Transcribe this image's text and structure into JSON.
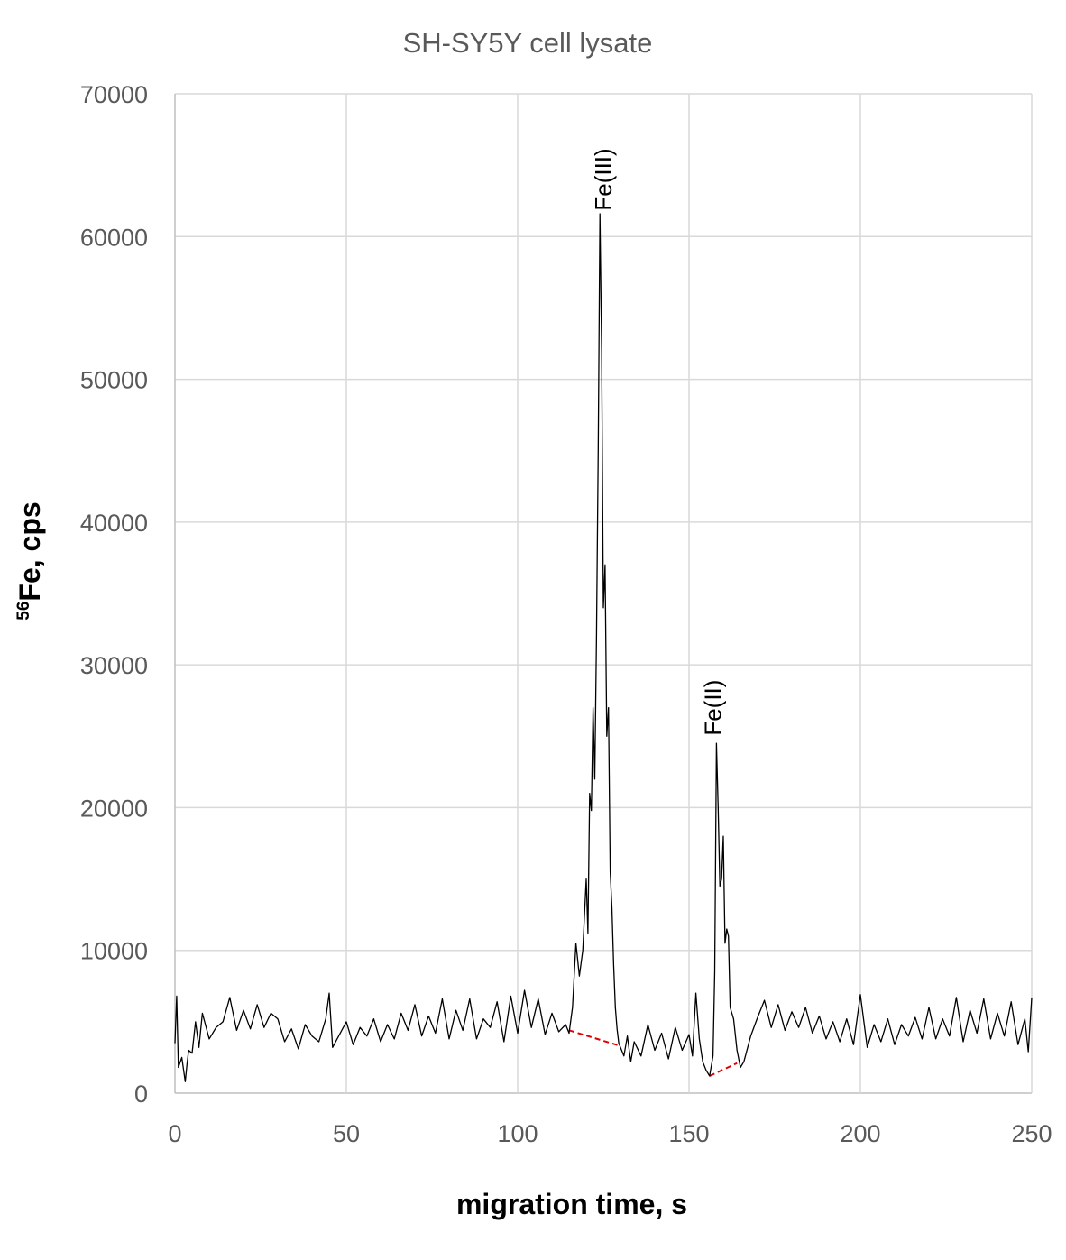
{
  "chart_data": {
    "type": "line",
    "title": "SH-SY5Y cell lysate",
    "xlabel": "migration time, s",
    "ylabel": {
      "sup": "56",
      "main": "Fe, cps"
    },
    "xlim": [
      0,
      250
    ],
    "ylim": [
      0,
      70000
    ],
    "x_ticks": [
      0,
      50,
      100,
      150,
      200,
      250
    ],
    "y_ticks": [
      0,
      10000,
      20000,
      30000,
      40000,
      50000,
      60000,
      70000
    ],
    "grid": true,
    "legend": "none",
    "colors": {
      "line": "#000000",
      "baseline": "#e00000",
      "grid": "#d9d9d9",
      "tick_text": "#595959"
    },
    "annotations": [
      {
        "text": "Fe(III)",
        "x": 125,
        "y": 64000
      },
      {
        "text": "Fe(II)",
        "x": 157,
        "y": 27000
      }
    ],
    "baselines": [
      {
        "x": [
          115,
          130
        ],
        "y": [
          4400,
          3300
        ]
      },
      {
        "x": [
          156,
          164
        ],
        "y": [
          1200,
          2100
        ]
      }
    ],
    "series": [
      {
        "x": [
          0,
          0.5,
          1,
          2,
          3,
          3.5,
          4,
          5,
          6,
          7,
          8,
          10,
          12,
          14,
          16,
          18,
          20,
          22,
          24,
          26,
          28,
          30,
          32,
          34,
          36,
          38,
          40,
          42,
          44,
          45,
          46,
          48,
          50,
          52,
          54,
          56,
          58,
          60,
          62,
          64,
          66,
          68,
          70,
          72,
          74,
          76,
          78,
          80,
          82,
          84,
          86,
          88,
          90,
          92,
          94,
          96,
          98,
          100,
          102,
          104,
          106,
          108,
          110,
          112,
          114,
          115,
          116,
          117,
          118,
          119,
          120,
          120.5,
          121,
          121.5,
          122,
          122.5,
          123,
          123.5,
          124,
          124.5,
          125,
          125.5,
          126,
          126.5,
          127,
          127.5,
          128,
          128.5,
          129,
          129.5,
          130,
          131,
          132,
          133,
          134,
          136,
          138,
          140,
          142,
          144,
          146,
          148,
          150,
          151,
          152,
          153,
          154,
          155,
          156,
          157,
          157.5,
          158,
          158.5,
          159,
          159.5,
          160,
          160.5,
          161,
          161.5,
          162,
          163,
          164,
          165,
          166,
          168,
          170,
          172,
          174,
          176,
          178,
          180,
          182,
          184,
          186,
          188,
          190,
          192,
          194,
          196,
          198,
          200,
          202,
          204,
          206,
          208,
          210,
          212,
          214,
          216,
          218,
          220,
          222,
          224,
          226,
          228,
          230,
          232,
          234,
          236,
          238,
          240,
          242,
          244,
          246,
          248,
          249,
          250
        ],
        "y": [
          3500,
          6800,
          1800,
          2500,
          800,
          2000,
          3000,
          2800,
          5000,
          3200,
          5600,
          3800,
          4600,
          5000,
          6700,
          4400,
          5800,
          4500,
          6200,
          4600,
          5600,
          5200,
          3600,
          4500,
          3100,
          4800,
          4000,
          3600,
          5200,
          7000,
          3200,
          4100,
          5000,
          3400,
          4600,
          4000,
          5200,
          3600,
          4800,
          3800,
          5600,
          4400,
          6200,
          4000,
          5400,
          4200,
          6600,
          3800,
          5800,
          4400,
          6600,
          3800,
          5200,
          4600,
          6400,
          3600,
          6800,
          4200,
          7200,
          4600,
          6600,
          4100,
          5600,
          4300,
          4800,
          4200,
          6000,
          10500,
          8200,
          10000,
          15000,
          11200,
          21000,
          19800,
          27000,
          22000,
          32000,
          45000,
          61600,
          52000,
          34000,
          37000,
          25000,
          27000,
          15500,
          13000,
          9000,
          6000,
          4500,
          3500,
          3200,
          2600,
          4000,
          2200,
          3600,
          2600,
          4800,
          3000,
          4200,
          2400,
          4600,
          3000,
          4100,
          2600,
          7000,
          3800,
          2200,
          1600,
          1200,
          2600,
          8500,
          24500,
          20000,
          14500,
          15000,
          18000,
          10500,
          11500,
          11000,
          6000,
          5200,
          3000,
          1800,
          2200,
          4000,
          5300,
          6500,
          4600,
          6200,
          4400,
          5700,
          4600,
          6000,
          4200,
          5400,
          3800,
          5000,
          3600,
          5200,
          3400,
          6900,
          3200,
          4800,
          3600,
          5200,
          3400,
          4800,
          4000,
          5300,
          3800,
          6000,
          3800,
          5200,
          4000,
          6700,
          3600,
          5800,
          4200,
          6600,
          3800,
          5600,
          4000,
          6400,
          3400,
          5200,
          2900,
          6700
        ]
      }
    ]
  }
}
